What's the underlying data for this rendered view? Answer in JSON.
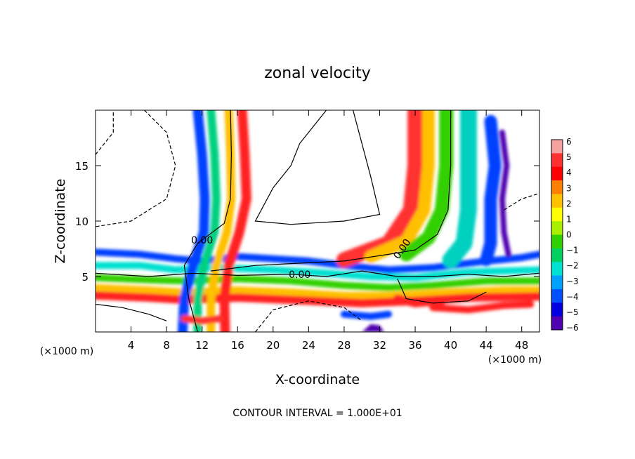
{
  "chart_data": {
    "type": "heatmap",
    "title": "zonal velocity",
    "xlabel": "X-coordinate",
    "ylabel": "Z-coordinate",
    "x_unit_label": "(×1000 m)",
    "y_unit_label": "(×1000 m)",
    "xlim": [
      0,
      50
    ],
    "ylim": [
      0,
      20
    ],
    "xticks": [
      4,
      8,
      12,
      16,
      20,
      24,
      28,
      32,
      36,
      40,
      44,
      48
    ],
    "yticks": [
      5,
      10,
      15
    ],
    "colorbar": {
      "min": -6,
      "max": 6,
      "ticks": [
        6,
        5,
        4,
        3,
        2,
        1,
        0,
        -1,
        -2,
        -3,
        -4,
        -5,
        -6
      ],
      "colors": [
        "#f7a0a0",
        "#ff3030",
        "#ff0000",
        "#ff8000",
        "#ffc000",
        "#ffff00",
        "#a8f000",
        "#30d000",
        "#00d060",
        "#00e0d0",
        "#00a0ff",
        "#0050ff",
        "#0000e0",
        "#5000b0"
      ]
    },
    "contour_labels": [
      "0.00",
      "0.00",
      "0.00"
    ],
    "footer": "CONTOUR INTERVAL = 1.000E+01"
  }
}
